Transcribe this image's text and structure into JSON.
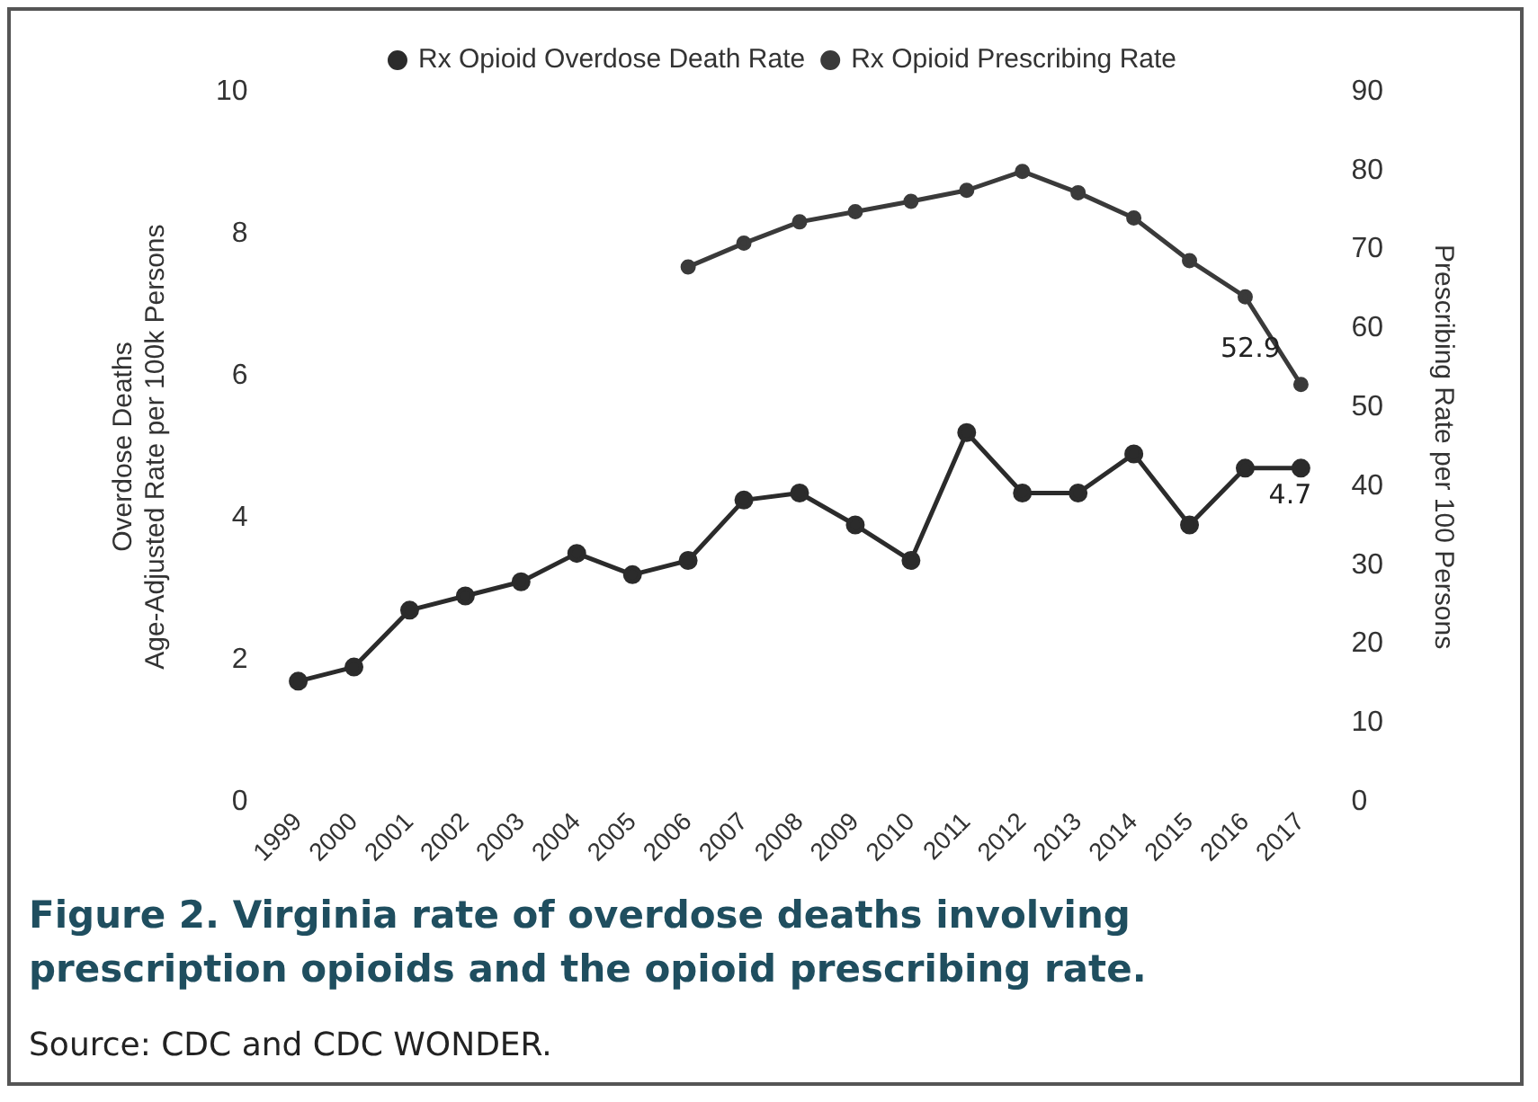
{
  "chart_data": {
    "type": "line",
    "title": "Figure 2. Virginia rate of overdose deaths involving prescription opioids and the opioid prescribing rate.",
    "categories": [
      "1999",
      "2000",
      "2001",
      "2002",
      "2003",
      "2004",
      "2005",
      "2006",
      "2007",
      "2008",
      "2009",
      "2010",
      "2011",
      "2012",
      "2013",
      "2014",
      "2015",
      "2016",
      "2017"
    ],
    "series": [
      {
        "name": "Rx Opioid Overdose Death Rate",
        "color": "#2b2b2b",
        "marker": "circle",
        "values": [
          1.7,
          1.9,
          2.7,
          2.9,
          3.1,
          3.5,
          3.2,
          3.4,
          4.25,
          4.35,
          3.9,
          3.4,
          5.2,
          4.35,
          4.35,
          4.9,
          3.9,
          4.7,
          4.7
        ],
        "value_labels": [
          null,
          null,
          null,
          null,
          null,
          null,
          null,
          null,
          null,
          null,
          null,
          null,
          null,
          null,
          null,
          null,
          null,
          null,
          "4.7"
        ]
      },
      {
        "name": "Rx Opioid Prescribing Rate",
        "color": "#3a3a3a",
        "marker": "circle",
        "axis": "y2",
        "values": [
          null,
          null,
          null,
          null,
          null,
          null,
          null,
          67.8,
          70.8,
          73.5,
          74.8,
          76.1,
          77.5,
          79.9,
          77.2,
          74,
          68.6,
          64,
          52.9
        ],
        "value_labels": [
          null,
          null,
          null,
          null,
          null,
          null,
          null,
          null,
          null,
          null,
          null,
          null,
          null,
          null,
          null,
          null,
          null,
          null,
          "52.9"
        ]
      }
    ],
    "ylabel": "Overdose Deaths\nAge-Adjusted Rate per 100k Persons",
    "y2label": "Prescribing Rate per 100 Persons",
    "ylim": [
      0,
      10
    ],
    "yticks": [
      0,
      2,
      4,
      6,
      8,
      10
    ],
    "y2lim": [
      0,
      90
    ],
    "y2ticks": [
      0,
      10,
      20,
      30,
      40,
      50,
      60,
      70,
      80,
      90
    ],
    "grid": false,
    "legend": "top",
    "line_style": "solid",
    "annotations": [
      "Source: CDC and CDC WONDER."
    ]
  }
}
